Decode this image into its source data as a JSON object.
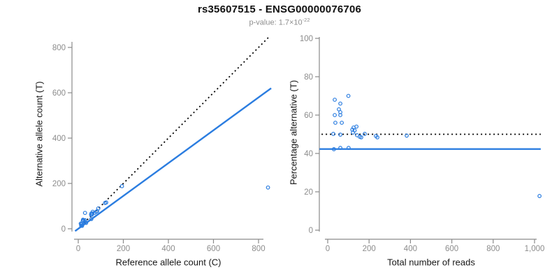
{
  "header": {
    "title": "rs35607515 - ENSG00000076706",
    "pvalue_label": "p-value:",
    "pvalue_base": "1.7×10",
    "pvalue_exponent": "-22"
  },
  "colors": {
    "accent_blue": "#2b7de0",
    "axis_gray": "#8a8a8a",
    "tick_label_gray": "#8c8c8c",
    "dotted_black": "#000000"
  },
  "chart_data": [
    {
      "id": "left",
      "type": "scatter",
      "xlabel": "Reference allele count (C)",
      "ylabel": "Alternative allele count (T)",
      "xlim": [
        0,
        870
      ],
      "ylim": [
        0,
        860
      ],
      "grid": false,
      "marker": "open-circle",
      "point_color": "#2b7de0",
      "xticks": {
        "values": [
          0,
          200,
          400,
          600,
          800
        ],
        "labels": [
          "0",
          "200",
          "400",
          "600",
          "800"
        ]
      },
      "yticks": {
        "values": [
          0,
          200,
          400,
          600,
          800
        ],
        "labels": [
          "0",
          "200",
          "400",
          "600",
          "800"
        ]
      },
      "points": [
        [
          11,
          23
        ],
        [
          21,
          40
        ],
        [
          30,
          70
        ],
        [
          20,
          34
        ],
        [
          23,
          38
        ],
        [
          14,
          20
        ],
        [
          24,
          37
        ],
        [
          16,
          21
        ],
        [
          30,
          38
        ],
        [
          64,
          75
        ],
        [
          58,
          67
        ],
        [
          62,
          68
        ],
        [
          57,
          62
        ],
        [
          13,
          14
        ],
        [
          31,
          30
        ],
        [
          60,
          62
        ],
        [
          72,
          70
        ],
        [
          80,
          75
        ],
        [
          84,
          78
        ],
        [
          89,
          90
        ],
        [
          119,
          114
        ],
        [
          124,
          116
        ],
        [
          194,
          188
        ],
        [
          17,
          13
        ],
        [
          35,
          26
        ],
        [
          58,
          43
        ],
        [
          842,
          182
        ]
      ],
      "lines": [
        {
          "name": "identity-line",
          "style": "dotted",
          "color": "#000000",
          "x": [
            0,
            848
          ],
          "y": [
            0,
            848
          ]
        },
        {
          "name": "fit-line",
          "style": "solid",
          "color": "#2b7de0",
          "x": [
            -14,
            856
          ],
          "y": [
            -10,
            620
          ]
        }
      ]
    },
    {
      "id": "right",
      "type": "scatter",
      "xlabel": "Total number of reads",
      "ylabel": "Percentage alternative (T)",
      "xlim": [
        0,
        1050
      ],
      "ylim": [
        0,
        100
      ],
      "grid": false,
      "marker": "open-circle",
      "point_color": "#2b7de0",
      "xticks": {
        "values": [
          0,
          200,
          400,
          600,
          800,
          1000
        ],
        "labels": [
          "0",
          "200",
          "400",
          "600",
          "800",
          "1,000"
        ]
      },
      "yticks": {
        "values": [
          0,
          20,
          40,
          60,
          80,
          100
        ],
        "labels": [
          "0",
          "20",
          "40",
          "60",
          "80",
          "100"
        ]
      },
      "points": [
        [
          34,
          68
        ],
        [
          61,
          66
        ],
        [
          100,
          70
        ],
        [
          54,
          63
        ],
        [
          61,
          61.5
        ],
        [
          34,
          60
        ],
        [
          61,
          60
        ],
        [
          37,
          56
        ],
        [
          68,
          56
        ],
        [
          139,
          54
        ],
        [
          125,
          53.5
        ],
        [
          130,
          52
        ],
        [
          119,
          52.4
        ],
        [
          27,
          50.2
        ],
        [
          61,
          49.8
        ],
        [
          122,
          50.9
        ],
        [
          142,
          49.5
        ],
        [
          155,
          48.7
        ],
        [
          162,
          48.4
        ],
        [
          179,
          50.2
        ],
        [
          233,
          49.1
        ],
        [
          240,
          48.4
        ],
        [
          382,
          49.3
        ],
        [
          30,
          42.2
        ],
        [
          61,
          42.9
        ],
        [
          101,
          42.9
        ],
        [
          1024,
          17.8
        ]
      ],
      "lines": [
        {
          "name": "expected-50pct-line",
          "style": "dotted",
          "color": "#000000",
          "x": [
            -30,
            1030
          ],
          "y": [
            50,
            50
          ]
        },
        {
          "name": "observed-ratio-line",
          "style": "solid",
          "color": "#2b7de0",
          "x": [
            -40,
            1030
          ],
          "y": [
            42.3,
            42.3
          ]
        }
      ]
    }
  ]
}
